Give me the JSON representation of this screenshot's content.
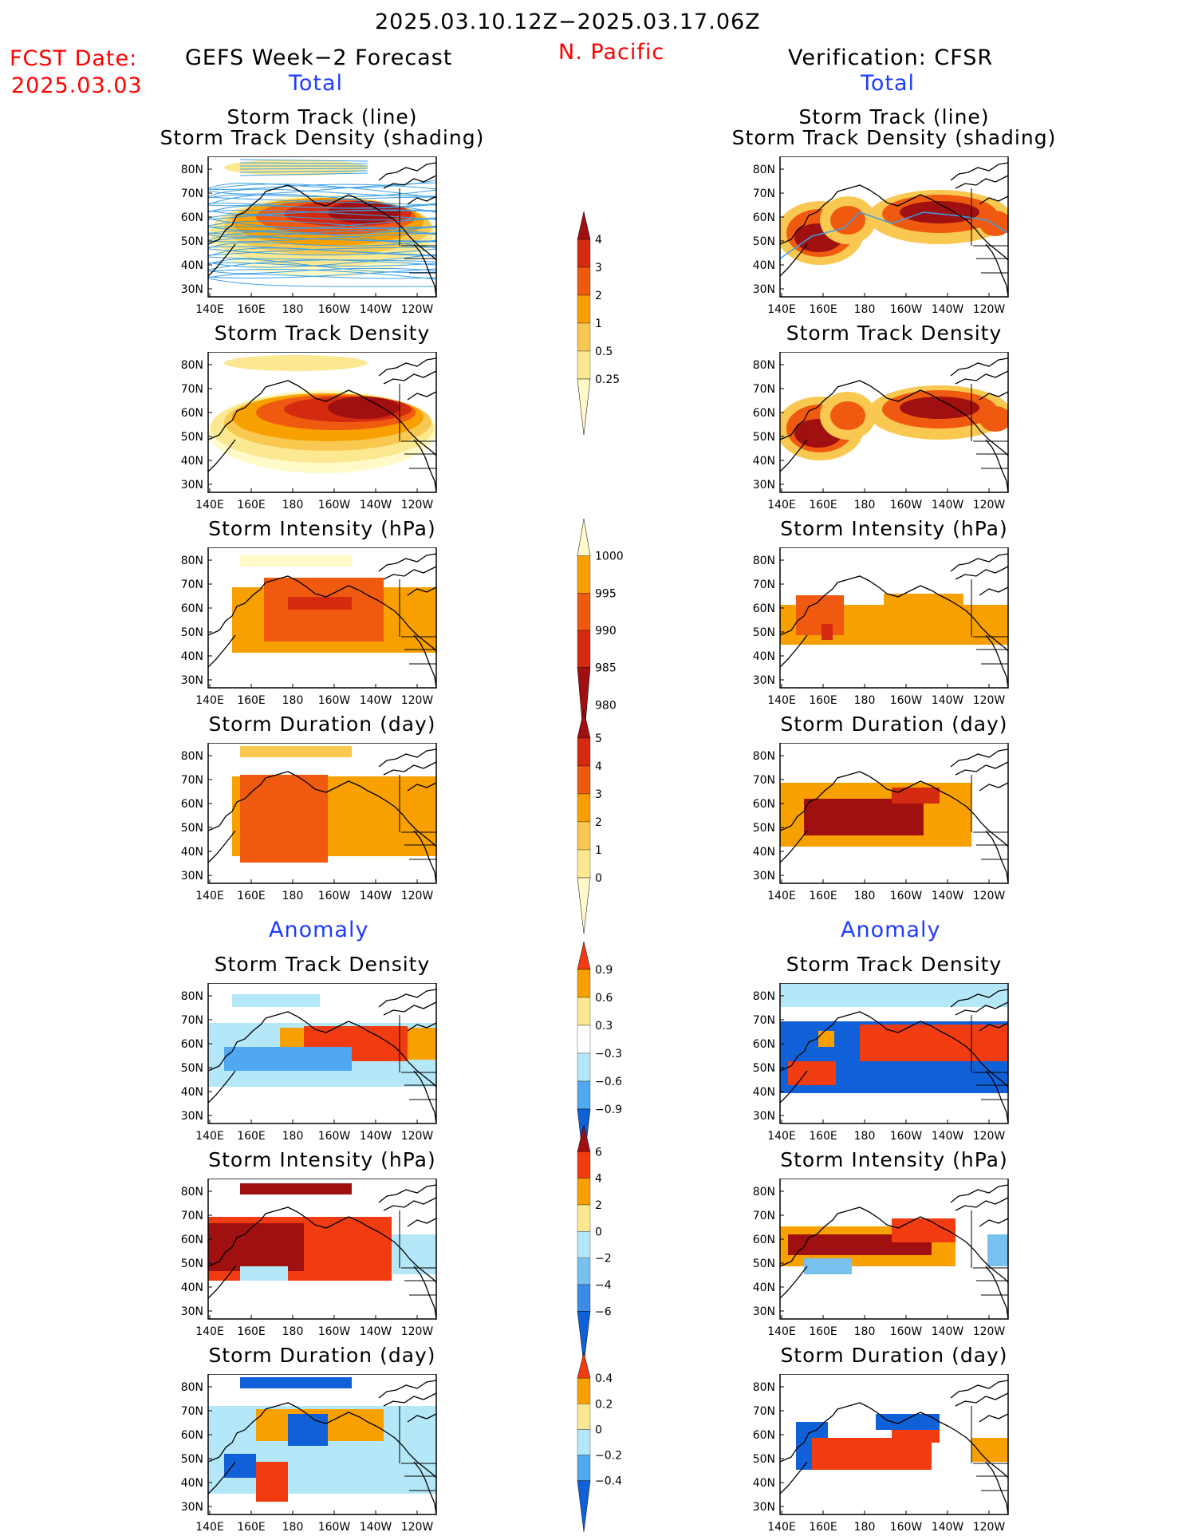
{
  "header": {
    "date_range": "2025.03.10.12Z−2025.03.17.06Z",
    "fcst_label": "FCST Date:",
    "fcst_date": "2025.03.03",
    "left_title": "GEFS Week−2 Forecast",
    "region": "N. Pacific",
    "right_title": "Verification: CFSR",
    "left_total": "Total",
    "right_total": "Total",
    "left_anomaly": "Anomaly",
    "right_anomaly": "Anomaly"
  },
  "panel_titles": {
    "track_line": "Storm Track (line)",
    "track_shading": "Storm Track Density (shading)",
    "density": "Storm Track Density",
    "intensity": "Storm Intensity (hPa)",
    "duration": "Storm Duration (day)"
  },
  "axes": {
    "lon_labels": [
      "140E",
      "160E",
      "180",
      "160W",
      "140W",
      "120W"
    ],
    "lat_labels": [
      "80N",
      "70N",
      "60N",
      "50N",
      "40N",
      "30N"
    ]
  },
  "colorbars": {
    "density": {
      "labels": [
        "4",
        "3",
        "2",
        "1",
        "0.5",
        "0.25"
      ],
      "colors": [
        "#a01010",
        "#d42a10",
        "#f05a10",
        "#f8a000",
        "#f8c850",
        "#fce890",
        "#fffac8"
      ]
    },
    "intensity": {
      "labels": [
        "1000",
        "995",
        "990",
        "985",
        "980"
      ],
      "colors": [
        "#fffac8",
        "#f8a000",
        "#f05a10",
        "#d42a10",
        "#a01010"
      ]
    },
    "duration": {
      "labels": [
        "5",
        "4",
        "3",
        "2",
        "1",
        "0"
      ],
      "colors": [
        "#a01010",
        "#d42a10",
        "#f05a10",
        "#f8a000",
        "#f8c850",
        "#fce890",
        "#fffac8"
      ]
    },
    "anom_density": {
      "labels": [
        "0.9",
        "0.6",
        "0.3",
        "−0.3",
        "−0.6",
        "−0.9"
      ],
      "colors": [
        "#f03c10",
        "#f8a000",
        "#fce890",
        "#ffffff",
        "#b4e8f8",
        "#50a8f0",
        "#1060d8"
      ]
    },
    "anom_intensity": {
      "labels": [
        "6",
        "4",
        "2",
        "0",
        "−2",
        "−4",
        "−6"
      ],
      "colors": [
        "#a01010",
        "#f03c10",
        "#f8a000",
        "#fce890",
        "#b4e8f8",
        "#78c0f0",
        "#3c8ce6",
        "#1060d8"
      ]
    },
    "anom_duration": {
      "labels": [
        "0.4",
        "0.2",
        "0",
        "−0.2",
        "−0.4"
      ],
      "colors": [
        "#f03c10",
        "#f8a000",
        "#fce890",
        "#b4e8f8",
        "#50a8f0",
        "#1060d8"
      ]
    }
  },
  "colors": {
    "title_red": "#ff0000",
    "title_blue": "#1e3cff",
    "track_line": "#3ca0e6"
  }
}
